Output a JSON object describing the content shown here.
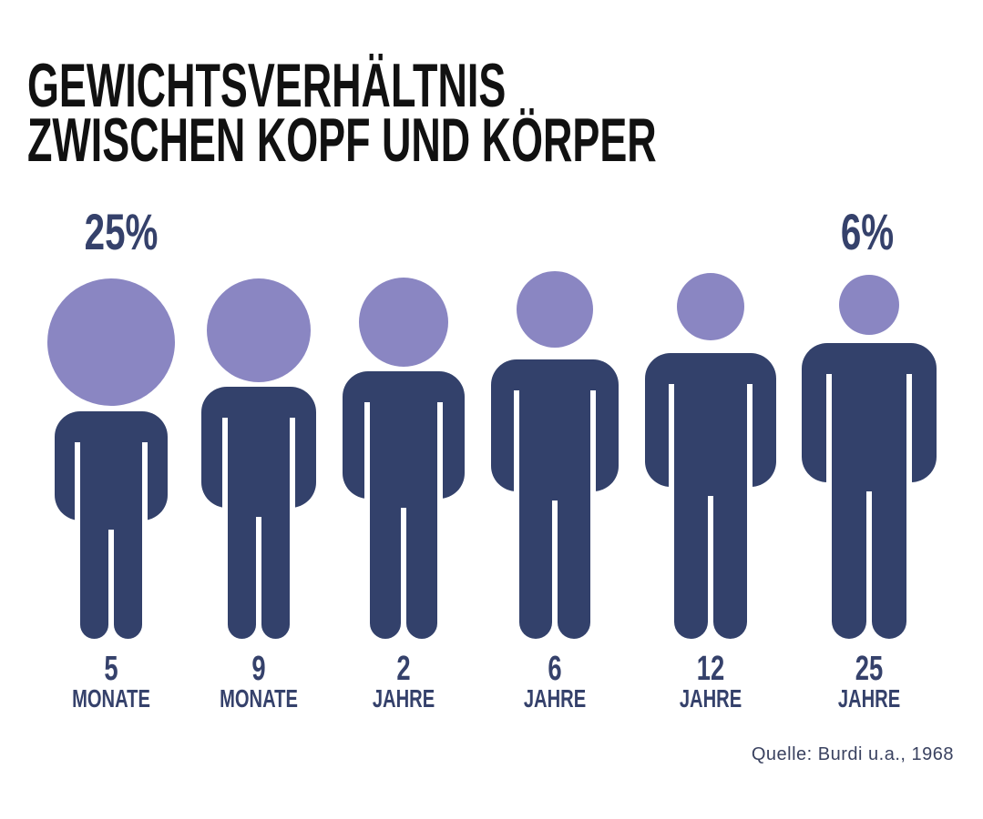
{
  "chart_data": {
    "type": "pictogram",
    "title": [
      "GEWICHTSVERHÄLTNIS",
      "ZWISCHEN KOPF UND KÖRPER"
    ],
    "categories": [
      {
        "number": "5",
        "unit": "MONATE"
      },
      {
        "number": "9",
        "unit": "MONATE"
      },
      {
        "number": "2",
        "unit": "JAHRE"
      },
      {
        "number": "6",
        "unit": "JAHRE"
      },
      {
        "number": "12",
        "unit": "JAHRE"
      },
      {
        "number": "25",
        "unit": "JAHRE"
      }
    ],
    "value_labels": {
      "first": "25%",
      "last": "6%"
    },
    "source": "Quelle: Burdi u.a., 1968",
    "colors": {
      "head": "#8a86c2",
      "body": "#33416b",
      "text": "#35416b"
    }
  }
}
